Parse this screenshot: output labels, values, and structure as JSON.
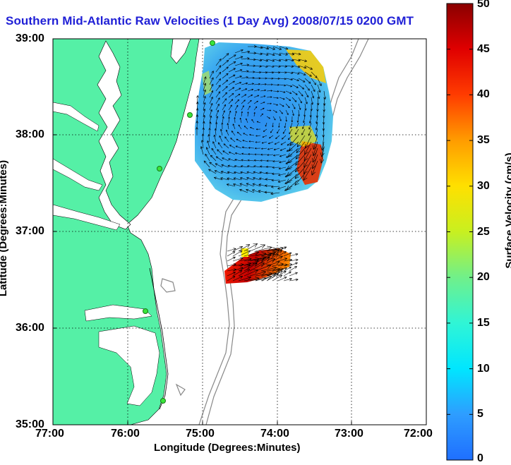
{
  "title": "Southern Mid-Atlantic Raw Velocities (1 Day Avg) 2008/07/15 0200 GMT",
  "map": {
    "x_label": "Longitude (Degrees:Minutes)",
    "y_label": "Latitude (Degrees:Minutes)",
    "x_ticks": [
      "77:00",
      "76:00",
      "75:00",
      "74:00",
      "73:00",
      "72:00"
    ],
    "y_ticks": [
      "39:00",
      "38:00",
      "37:00",
      "36:00",
      "35:00"
    ],
    "lon_range": [
      -77,
      -72
    ],
    "lat_range": [
      35,
      39
    ],
    "land_color": "#55f0a6",
    "ocean_color": "#ffffff"
  },
  "colorbar": {
    "label": "Surface Velocity (cm/s)",
    "ticks": [
      "0",
      "5",
      "10",
      "15",
      "20",
      "25",
      "30",
      "35",
      "40",
      "45",
      "50"
    ],
    "min": 0,
    "max": 50
  }
}
